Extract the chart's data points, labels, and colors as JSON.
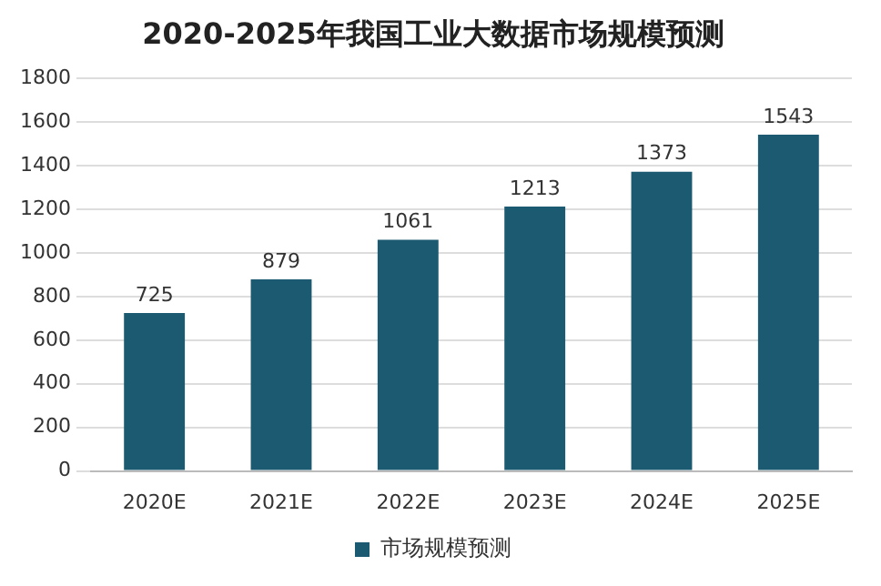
{
  "chart_data": {
    "type": "bar",
    "title": "2020-2025年我国工业大数据市场规模预测",
    "categories": [
      "2020E",
      "2021E",
      "2022E",
      "2023E",
      "2024E",
      "2025E"
    ],
    "series": [
      {
        "name": "市场规模预测",
        "color": "#1b5a70",
        "values": [
          725,
          879,
          1061,
          1213,
          1373,
          1543
        ]
      }
    ],
    "ylim": [
      0,
      1800
    ],
    "yticks": [
      0,
      200,
      400,
      600,
      800,
      1000,
      1200,
      1400,
      1600,
      1800
    ],
    "grid": "y",
    "legend": "bottom",
    "data_labels": true
  }
}
